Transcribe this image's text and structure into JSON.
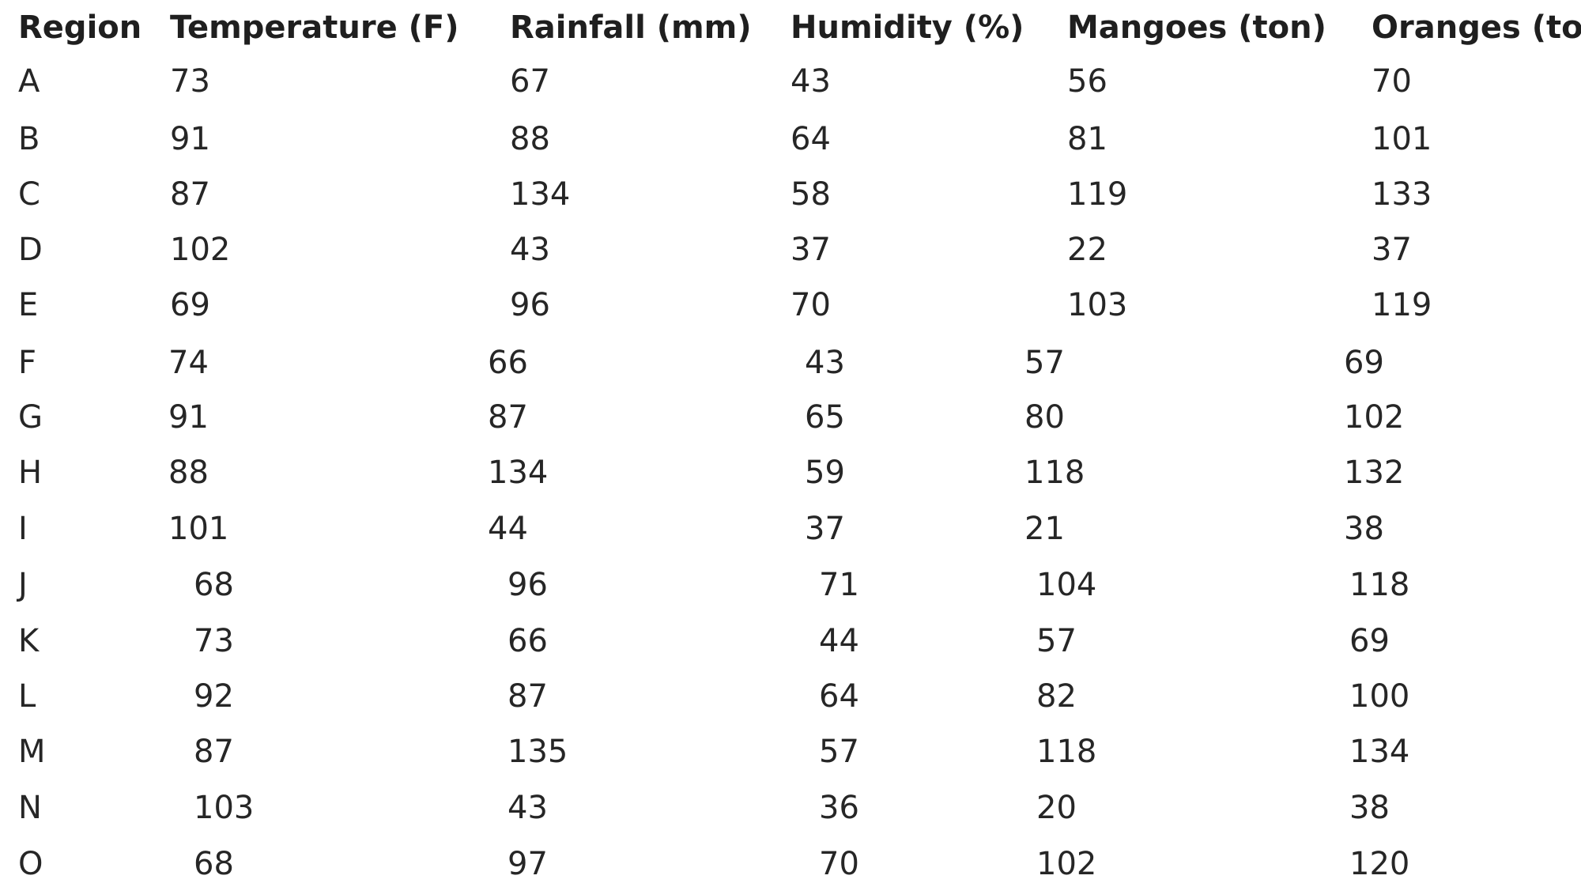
{
  "columns": [
    "Region",
    "Temperature (F)",
    "Rainfall (mm)",
    "Humidity (%)",
    "Mangoes (ton)",
    "Oranges (ton)"
  ],
  "rows": [
    [
      "A",
      "73",
      "67",
      "43",
      "56",
      "70"
    ],
    [
      "B",
      "91",
      "88",
      "64",
      "81",
      "101"
    ],
    [
      "C",
      "87",
      "134",
      "58",
      "119",
      "133"
    ],
    [
      "D",
      "102",
      "43",
      "37",
      "22",
      "37"
    ],
    [
      "E",
      "69",
      "96",
      "70",
      "103",
      "119"
    ],
    [
      "F",
      "74",
      "66",
      "43",
      "57",
      "69"
    ],
    [
      "G",
      "91",
      "87",
      "65",
      "80",
      "102"
    ],
    [
      "H",
      "88",
      "134",
      "59",
      "118",
      "132"
    ],
    [
      "I",
      "101",
      "44",
      "37",
      "21",
      "38"
    ],
    [
      "J",
      "68",
      "96",
      "71",
      "104",
      "118"
    ],
    [
      "K",
      "73",
      "66",
      "44",
      "57",
      "69"
    ],
    [
      "L",
      "92",
      "87",
      "64",
      "82",
      "100"
    ],
    [
      "M",
      "87",
      "135",
      "57",
      "118",
      "134"
    ],
    [
      "N",
      "103",
      "43",
      "36",
      "20",
      "38"
    ],
    [
      "O",
      "68",
      "97",
      "70",
      "102",
      "120"
    ]
  ]
}
